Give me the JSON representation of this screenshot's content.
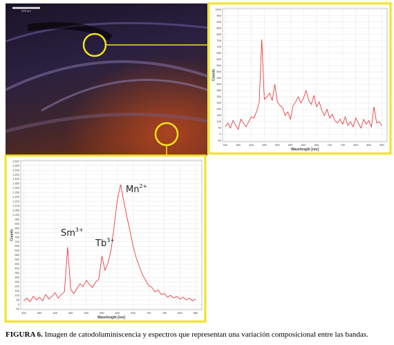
{
  "figure": {
    "scale_label": "500 µm",
    "caption": {
      "label": "FIGURA 6.",
      "text": " Imagen de catodoluminiscencia y espectros que representan una variación composicional entre las bandas."
    }
  },
  "chart_data": [
    {
      "type": "line",
      "xlabel": "Wavelength [nm]",
      "ylabel": "Counts",
      "color": "#e8262a",
      "grid": true,
      "x": [
        300,
        310,
        320,
        330,
        340,
        350,
        360,
        370,
        380,
        390,
        400,
        410,
        420,
        430,
        440,
        450,
        460,
        470,
        480,
        490,
        500,
        510,
        520,
        530,
        540,
        550,
        560,
        570,
        580,
        590,
        600,
        610,
        620,
        630,
        640,
        650,
        660,
        670,
        680,
        690,
        700,
        710,
        720,
        730,
        740,
        750,
        760,
        770,
        780,
        790,
        800,
        810,
        820,
        830,
        840,
        850,
        860,
        870,
        880,
        890,
        900
      ],
      "values": [
        60,
        90,
        50,
        110,
        70,
        40,
        120,
        90,
        60,
        100,
        140,
        130,
        180,
        250,
        760,
        280,
        300,
        330,
        270,
        400,
        260,
        230,
        210,
        150,
        180,
        120,
        230,
        260,
        300,
        250,
        290,
        350,
        270,
        240,
        310,
        220,
        260,
        190,
        150,
        200,
        130,
        160,
        110,
        90,
        120,
        80,
        140,
        70,
        100,
        60,
        130,
        90,
        50,
        120,
        80,
        110,
        60,
        220,
        90,
        100,
        70
      ],
      "xlim": [
        290,
        920
      ],
      "xticks": [
        300,
        350,
        400,
        450,
        500,
        550,
        600,
        650,
        700,
        750,
        800,
        850,
        900
      ],
      "ylim": [
        -60,
        1010
      ],
      "yticks": [
        -50,
        0,
        50,
        100,
        150,
        200,
        250,
        300,
        350,
        400,
        450,
        500,
        550,
        600,
        650,
        700,
        750,
        800,
        850,
        900,
        950,
        1000
      ]
    },
    {
      "type": "line",
      "xlabel": "Wavelength [nm]",
      "ylabel": "Counts",
      "color": "#e8262a",
      "grid": true,
      "x": [
        300,
        310,
        320,
        330,
        340,
        350,
        360,
        370,
        380,
        390,
        400,
        410,
        420,
        430,
        440,
        450,
        460,
        470,
        480,
        490,
        500,
        510,
        520,
        530,
        540,
        550,
        560,
        570,
        580,
        590,
        600,
        610,
        620,
        630,
        640,
        650,
        660,
        670,
        680,
        690,
        700,
        710,
        720,
        730,
        740,
        750,
        760,
        770,
        780,
        790,
        800,
        810,
        820,
        830,
        840,
        850
      ],
      "values": [
        40,
        70,
        30,
        90,
        50,
        80,
        40,
        110,
        60,
        90,
        130,
        70,
        110,
        140,
        640,
        170,
        120,
        180,
        230,
        200,
        270,
        220,
        190,
        250,
        280,
        540,
        380,
        470,
        620,
        900,
        1180,
        1340,
        1150,
        980,
        820,
        650,
        520,
        420,
        330,
        270,
        210,
        190,
        140,
        160,
        110,
        120,
        80,
        100,
        70,
        90,
        60,
        80,
        50,
        70,
        40,
        60
      ],
      "xlim": [
        290,
        870
      ],
      "xticks": [
        300,
        350,
        400,
        450,
        500,
        550,
        600,
        650,
        700,
        750,
        800,
        850
      ],
      "ylim": [
        -60,
        1610
      ],
      "yticks": [
        -50,
        0,
        50,
        100,
        150,
        200,
        250,
        300,
        350,
        400,
        450,
        500,
        550,
        600,
        650,
        700,
        750,
        800,
        850,
        900,
        950,
        {
          "value": 1000,
          "label": "1,000"
        },
        {
          "value": 1050,
          "label": "1,050"
        },
        {
          "value": 1100,
          "label": "1,100"
        },
        {
          "value": 1150,
          "label": "1,150"
        },
        {
          "value": 1200,
          "label": "1,200"
        },
        {
          "value": 1250,
          "label": "1,250"
        },
        {
          "value": 1300,
          "label": "1,300"
        },
        {
          "value": 1350,
          "label": "1,350"
        },
        {
          "value": 1400,
          "label": "1,400"
        },
        {
          "value": 1450,
          "label": "1,450"
        },
        {
          "value": 1500,
          "label": "1,500"
        },
        {
          "value": 1550,
          "label": "1,550"
        },
        {
          "value": 1600,
          "label": "1,600"
        }
      ],
      "annotations": [
        {
          "text": "Sm",
          "sup": "3+"
        },
        {
          "text": "Tb",
          "sup": "3+"
        },
        {
          "text": "Mn",
          "sup": "2+"
        }
      ]
    }
  ]
}
